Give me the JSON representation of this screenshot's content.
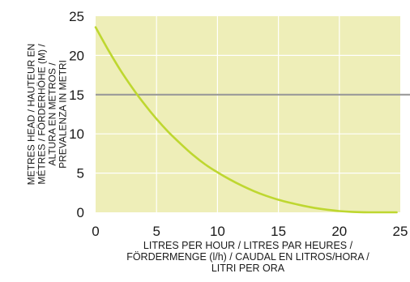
{
  "chart_data": {
    "type": "line",
    "xlabel_lines": [
      "LITRES PER HOUR / LITRES PAR HEURES /",
      "FÖRDERMENGE (l/h) / CAUDAL EN LITROS/HORA /",
      "LITRI PER ORA"
    ],
    "ylabel_lines": [
      "METRES HEAD / HAUTEUR EN",
      "MÉTRES / FÖRDERHÖHE (M) /",
      "ALTURA EN METROS /",
      "PREVALENZA IN METRI"
    ],
    "xlim": [
      0,
      25
    ],
    "ylim": [
      0,
      25
    ],
    "xticks": [
      0,
      5,
      10,
      15,
      20,
      25
    ],
    "yticks": [
      0,
      5,
      10,
      15,
      20,
      25
    ],
    "grid": true,
    "colors": {
      "plot_background": "#eeeeb8",
      "grid": "#ffffff",
      "curve": "#bed730",
      "reference_line": "#999999",
      "text": "#1a1a1a"
    },
    "series": [
      {
        "x": [
          0,
          1,
          2,
          3,
          4,
          5,
          6,
          7,
          8,
          9,
          10,
          11,
          12,
          13,
          14,
          15,
          16,
          17,
          18,
          19,
          20,
          21,
          22,
          23,
          24,
          24.7
        ],
        "y": [
          23.6,
          20.8,
          18.2,
          15.9,
          13.8,
          11.9,
          10.2,
          8.7,
          7.3,
          6.1,
          5.1,
          4.2,
          3.4,
          2.7,
          2.1,
          1.6,
          1.2,
          0.85,
          0.55,
          0.33,
          0.16,
          0.06,
          0.01,
          0,
          0,
          0
        ]
      }
    ],
    "reference_lines": [
      {
        "orientation": "horizontal",
        "y": 15
      }
    ]
  }
}
